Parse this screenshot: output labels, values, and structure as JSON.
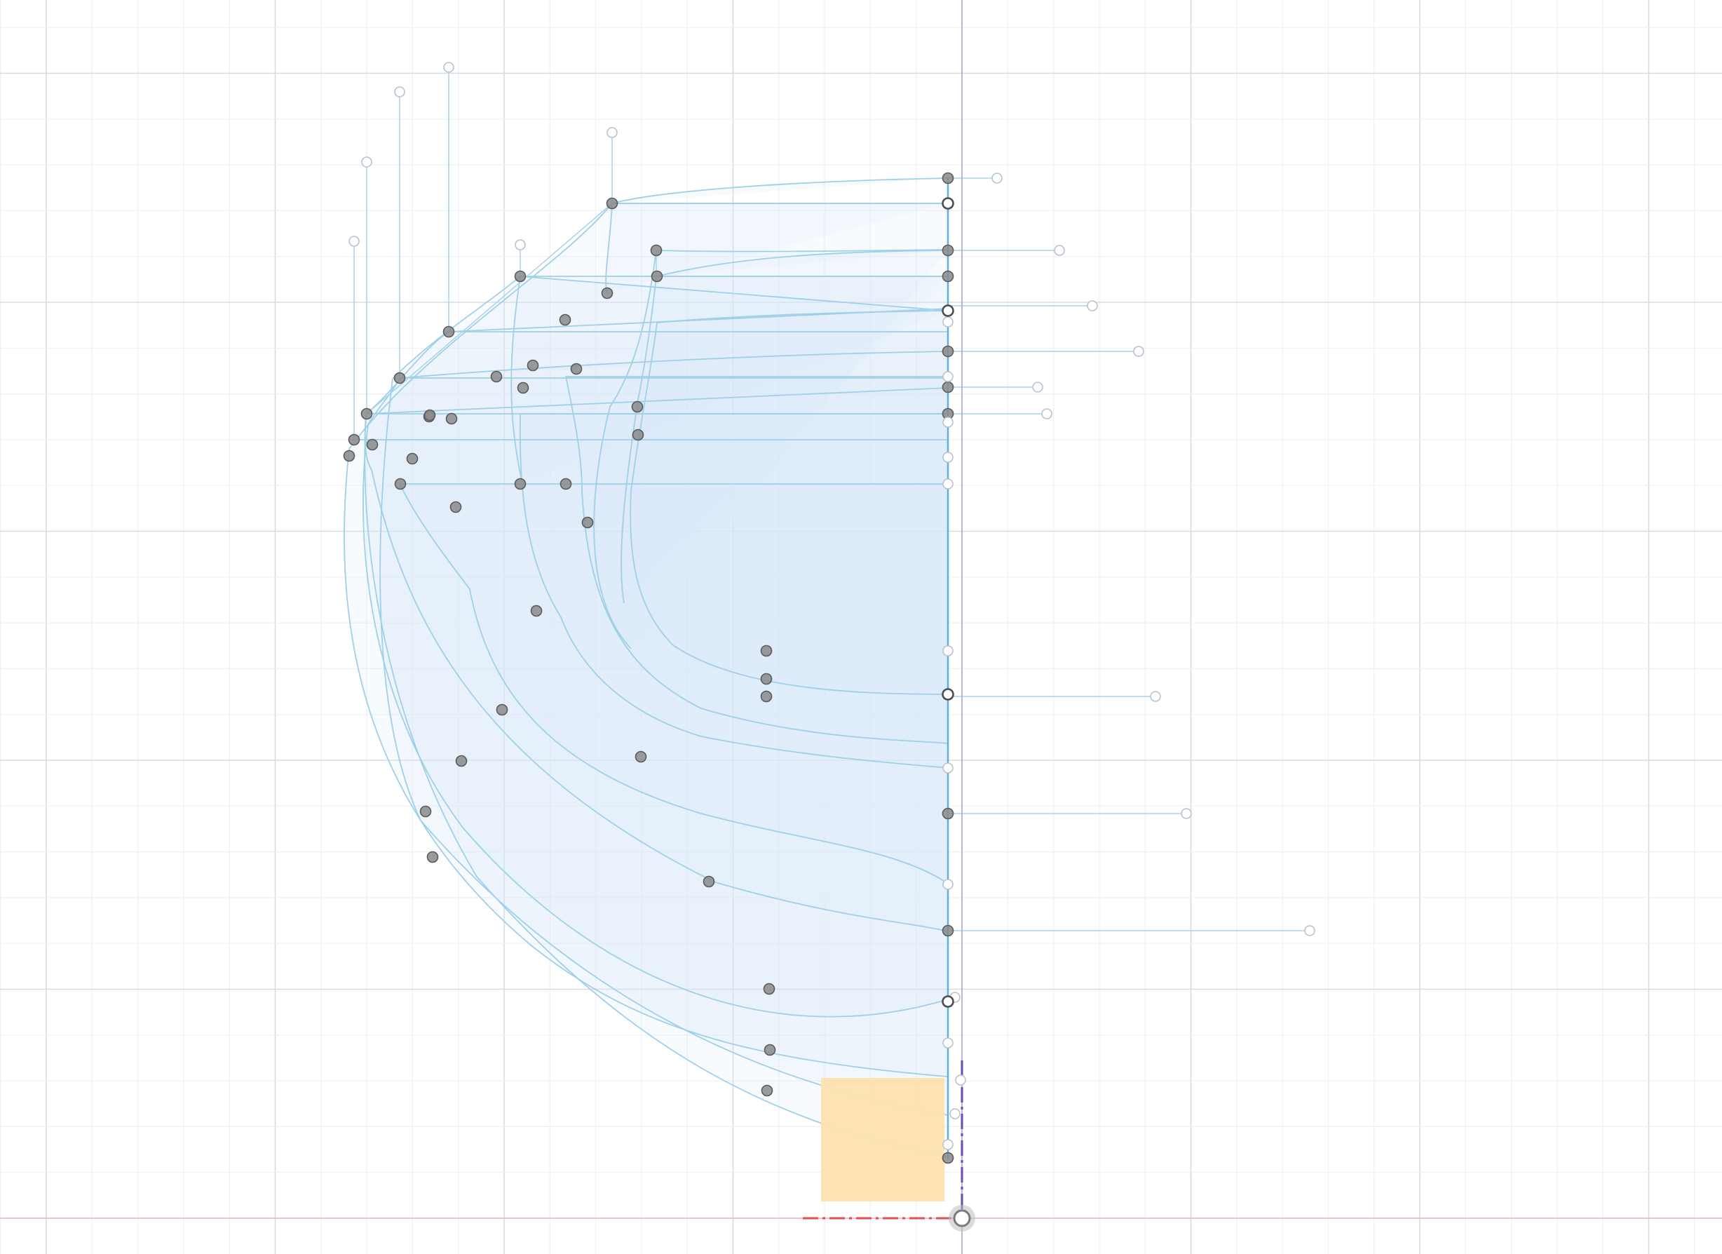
{
  "viewport": {
    "name": "sketch-canvas",
    "background": "#ffffff"
  },
  "colors": {
    "grid_minor": "#eef0f3",
    "grid_major": "#d7dbe0",
    "curve": "#9fd0e8",
    "curve_strong": "#5fb1dc",
    "fill": "#d6ebf7",
    "handle_line": "#a9d4ea",
    "point_fill": "#8a8a8a",
    "point_stroke": "#5a5a5a",
    "axis_x": "#e05050",
    "axis_y": "#6a4bb5",
    "highlight_box": "#fde2ae",
    "axis_vertical_ref": "#b09ad6"
  },
  "icons": {
    "origin": "origin-point-icon",
    "control_point": "control-point-icon",
    "handle_endpoint": "handle-endpoint-icon"
  }
}
